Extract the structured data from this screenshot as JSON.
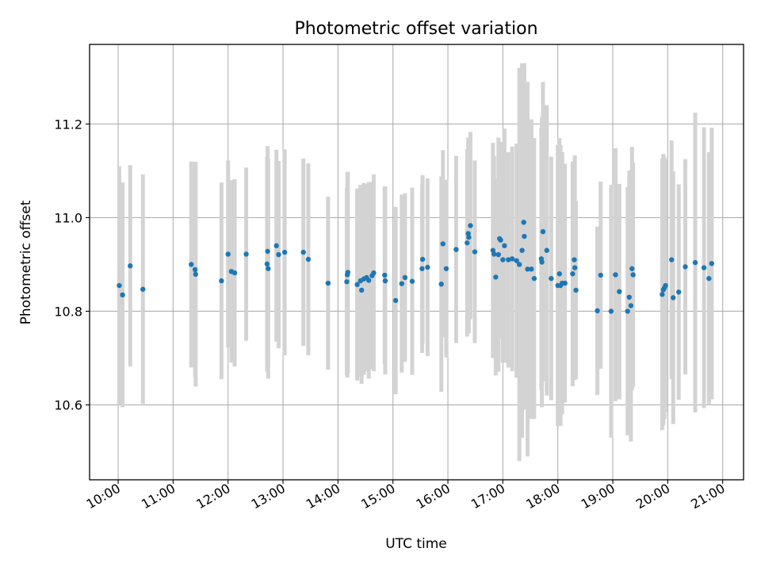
{
  "chart_data": {
    "type": "scatter",
    "title": "Photometric offset variation",
    "xlabel": "UTC time",
    "ylabel": "Photometric offset",
    "grid": true,
    "xlim": [
      9.48,
      21.38
    ],
    "ylim": [
      10.44,
      11.37
    ],
    "x_ticks": [
      10,
      11,
      12,
      13,
      14,
      15,
      16,
      17,
      18,
      19,
      20,
      21
    ],
    "x_tick_labels": [
      "10:00",
      "11:00",
      "12:00",
      "13:00",
      "14:00",
      "15:00",
      "16:00",
      "17:00",
      "18:00",
      "19:00",
      "20:00",
      "21:00"
    ],
    "y_ticks": [
      10.6,
      10.8,
      11.0,
      11.2
    ],
    "y_tick_labels": [
      "10.6",
      "10.8",
      "11.0",
      "11.2"
    ],
    "colors": {
      "points": "#1f77b4",
      "errorbars": "#d3d3d3",
      "grid": "#b0b0b0"
    },
    "series": [
      {
        "name": "offset",
        "points": [
          [
            10.02,
            10.855,
            0.255
          ],
          [
            10.08,
            10.835,
            0.24
          ],
          [
            10.22,
            10.897,
            0.215
          ],
          [
            10.45,
            10.847,
            0.245
          ],
          [
            11.33,
            10.9,
            0.22
          ],
          [
            11.4,
            10.889,
            0.23
          ],
          [
            11.41,
            10.879,
            0.24
          ],
          [
            11.88,
            10.865,
            0.21
          ],
          [
            12.0,
            10.922,
            0.2
          ],
          [
            12.06,
            10.885,
            0.195
          ],
          [
            12.12,
            10.882,
            0.2
          ],
          [
            12.33,
            10.922,
            0.185
          ],
          [
            12.71,
            10.901,
            0.23
          ],
          [
            12.72,
            10.928,
            0.225
          ],
          [
            12.73,
            10.891,
            0.235
          ],
          [
            12.88,
            10.94,
            0.205
          ],
          [
            12.92,
            10.921,
            0.2
          ],
          [
            13.03,
            10.926,
            0.22
          ],
          [
            13.37,
            10.926,
            0.2
          ],
          [
            13.46,
            10.911,
            0.205
          ],
          [
            13.82,
            10.86,
            0.185
          ],
          [
            14.16,
            10.863,
            0.2
          ],
          [
            14.17,
            10.878,
            0.22
          ],
          [
            14.18,
            10.883,
            0.215
          ],
          [
            14.35,
            10.857,
            0.205
          ],
          [
            14.41,
            10.865,
            0.205
          ],
          [
            14.43,
            10.845,
            0.2
          ],
          [
            14.47,
            10.869,
            0.205
          ],
          [
            14.52,
            10.872,
            0.2
          ],
          [
            14.56,
            10.866,
            0.21
          ],
          [
            14.62,
            10.876,
            0.2
          ],
          [
            14.65,
            10.882,
            0.21
          ],
          [
            14.85,
            10.877,
            0.19
          ],
          [
            14.86,
            10.865,
            0.2
          ],
          [
            15.05,
            10.823,
            0.2
          ],
          [
            15.16,
            10.859,
            0.19
          ],
          [
            15.22,
            10.872,
            0.18
          ],
          [
            15.35,
            10.864,
            0.2
          ],
          [
            15.53,
            10.891,
            0.18
          ],
          [
            15.54,
            10.911,
            0.18
          ],
          [
            15.63,
            10.894,
            0.19
          ],
          [
            15.88,
            10.858,
            0.23
          ],
          [
            15.91,
            10.944,
            0.2
          ],
          [
            15.97,
            10.891,
            0.19
          ],
          [
            16.15,
            10.932,
            0.2
          ],
          [
            16.35,
            10.946,
            0.2
          ],
          [
            16.37,
            10.966,
            0.205
          ],
          [
            16.38,
            10.958,
            0.205
          ],
          [
            16.41,
            10.983,
            0.2
          ],
          [
            16.49,
            10.927,
            0.195
          ],
          [
            16.82,
            10.93,
            0.23
          ],
          [
            16.84,
            10.922,
            0.21
          ],
          [
            16.87,
            10.873,
            0.21
          ],
          [
            16.92,
            10.921,
            0.25
          ],
          [
            16.94,
            10.955,
            0.2
          ],
          [
            16.96,
            10.952,
            0.21
          ],
          [
            17.0,
            10.91,
            0.22
          ],
          [
            17.03,
            10.94,
            0.25
          ],
          [
            17.1,
            10.91,
            0.23
          ],
          [
            17.17,
            10.912,
            0.24
          ],
          [
            17.25,
            10.908,
            0.25
          ],
          [
            17.3,
            10.9,
            0.42
          ],
          [
            17.35,
            10.93,
            0.4
          ],
          [
            17.38,
            10.99,
            0.34
          ],
          [
            17.39,
            10.96,
            0.37
          ],
          [
            17.45,
            10.89,
            0.4
          ],
          [
            17.52,
            10.89,
            0.32
          ],
          [
            17.57,
            10.87,
            0.3
          ],
          [
            17.7,
            10.912,
            0.28
          ],
          [
            17.71,
            10.905,
            0.31
          ],
          [
            17.73,
            10.97,
            0.32
          ],
          [
            17.8,
            10.93,
            0.31
          ],
          [
            17.88,
            10.87,
            0.26
          ],
          [
            18.0,
            10.855,
            0.3
          ],
          [
            18.03,
            10.88,
            0.29
          ],
          [
            18.05,
            10.855,
            0.3
          ],
          [
            18.08,
            10.86,
            0.28
          ],
          [
            18.13,
            10.86,
            0.255
          ],
          [
            18.27,
            10.88,
            0.24
          ],
          [
            18.3,
            10.91,
            0.2
          ],
          [
            18.31,
            10.893,
            0.24
          ],
          [
            18.33,
            10.845,
            0.19
          ],
          [
            18.72,
            10.801,
            0.18
          ],
          [
            18.78,
            10.877,
            0.2
          ],
          [
            18.97,
            10.8,
            0.27
          ],
          [
            19.05,
            10.878,
            0.27
          ],
          [
            19.12,
            10.842,
            0.23
          ],
          [
            19.27,
            10.8,
            0.265
          ],
          [
            19.3,
            10.83,
            0.27
          ],
          [
            19.33,
            10.812,
            0.29
          ],
          [
            19.35,
            10.891,
            0.26
          ],
          [
            19.37,
            10.878,
            0.24
          ],
          [
            19.9,
            10.836,
            0.29
          ],
          [
            19.92,
            10.846,
            0.29
          ],
          [
            19.94,
            10.85,
            0.28
          ],
          [
            19.96,
            10.855,
            0.27
          ],
          [
            20.07,
            10.91,
            0.255
          ],
          [
            20.1,
            10.829,
            0.27
          ],
          [
            20.2,
            10.841,
            0.23
          ],
          [
            20.32,
            10.895,
            0.23
          ],
          [
            20.5,
            10.904,
            0.32
          ],
          [
            20.66,
            10.893,
            0.3
          ],
          [
            20.75,
            10.87,
            0.27
          ],
          [
            20.8,
            10.902,
            0.29
          ]
        ]
      }
    ]
  }
}
